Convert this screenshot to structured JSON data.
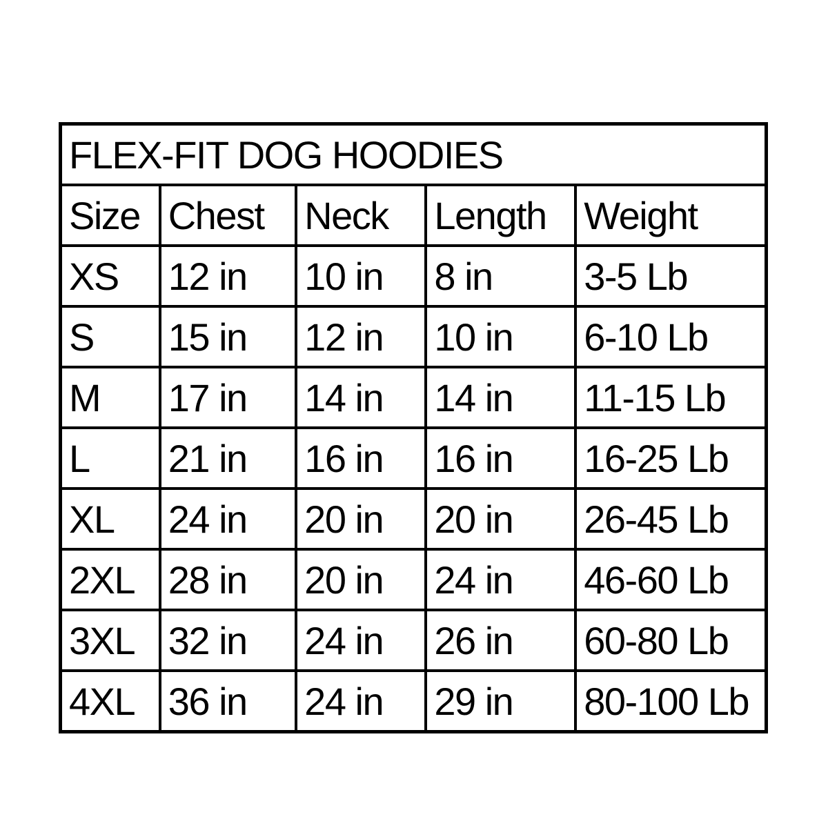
{
  "chart_data": {
    "type": "table",
    "title": "FLEX-FIT DOG HOODIES",
    "columns": [
      "Size",
      "Chest",
      "Neck",
      "Length",
      "Weight"
    ],
    "rows": [
      [
        "XS",
        "12 in",
        "10 in",
        "8 in",
        "3-5 Lb"
      ],
      [
        "S",
        "15 in",
        "12 in",
        "10 in",
        "6-10 Lb"
      ],
      [
        "M",
        "17 in",
        "14 in",
        "14 in",
        "11-15 Lb"
      ],
      [
        "L",
        "21 in",
        "16 in",
        "16 in",
        "16-25 Lb"
      ],
      [
        "XL",
        "24 in",
        "20 in",
        "20 in",
        "26-45 Lb"
      ],
      [
        "2XL",
        "28 in",
        "20 in",
        "24 in",
        "46-60 Lb"
      ],
      [
        "3XL",
        "32 in",
        "24 in",
        "26 in",
        "60-80 Lb"
      ],
      [
        "4XL",
        "36 in",
        "24 in",
        "29 in",
        "80-100 Lb"
      ]
    ],
    "layout": {
      "border_color": "#000000",
      "text_color": "#000000",
      "background_color": "#ffffff",
      "grid": "on",
      "title_position": "top-center"
    }
  }
}
